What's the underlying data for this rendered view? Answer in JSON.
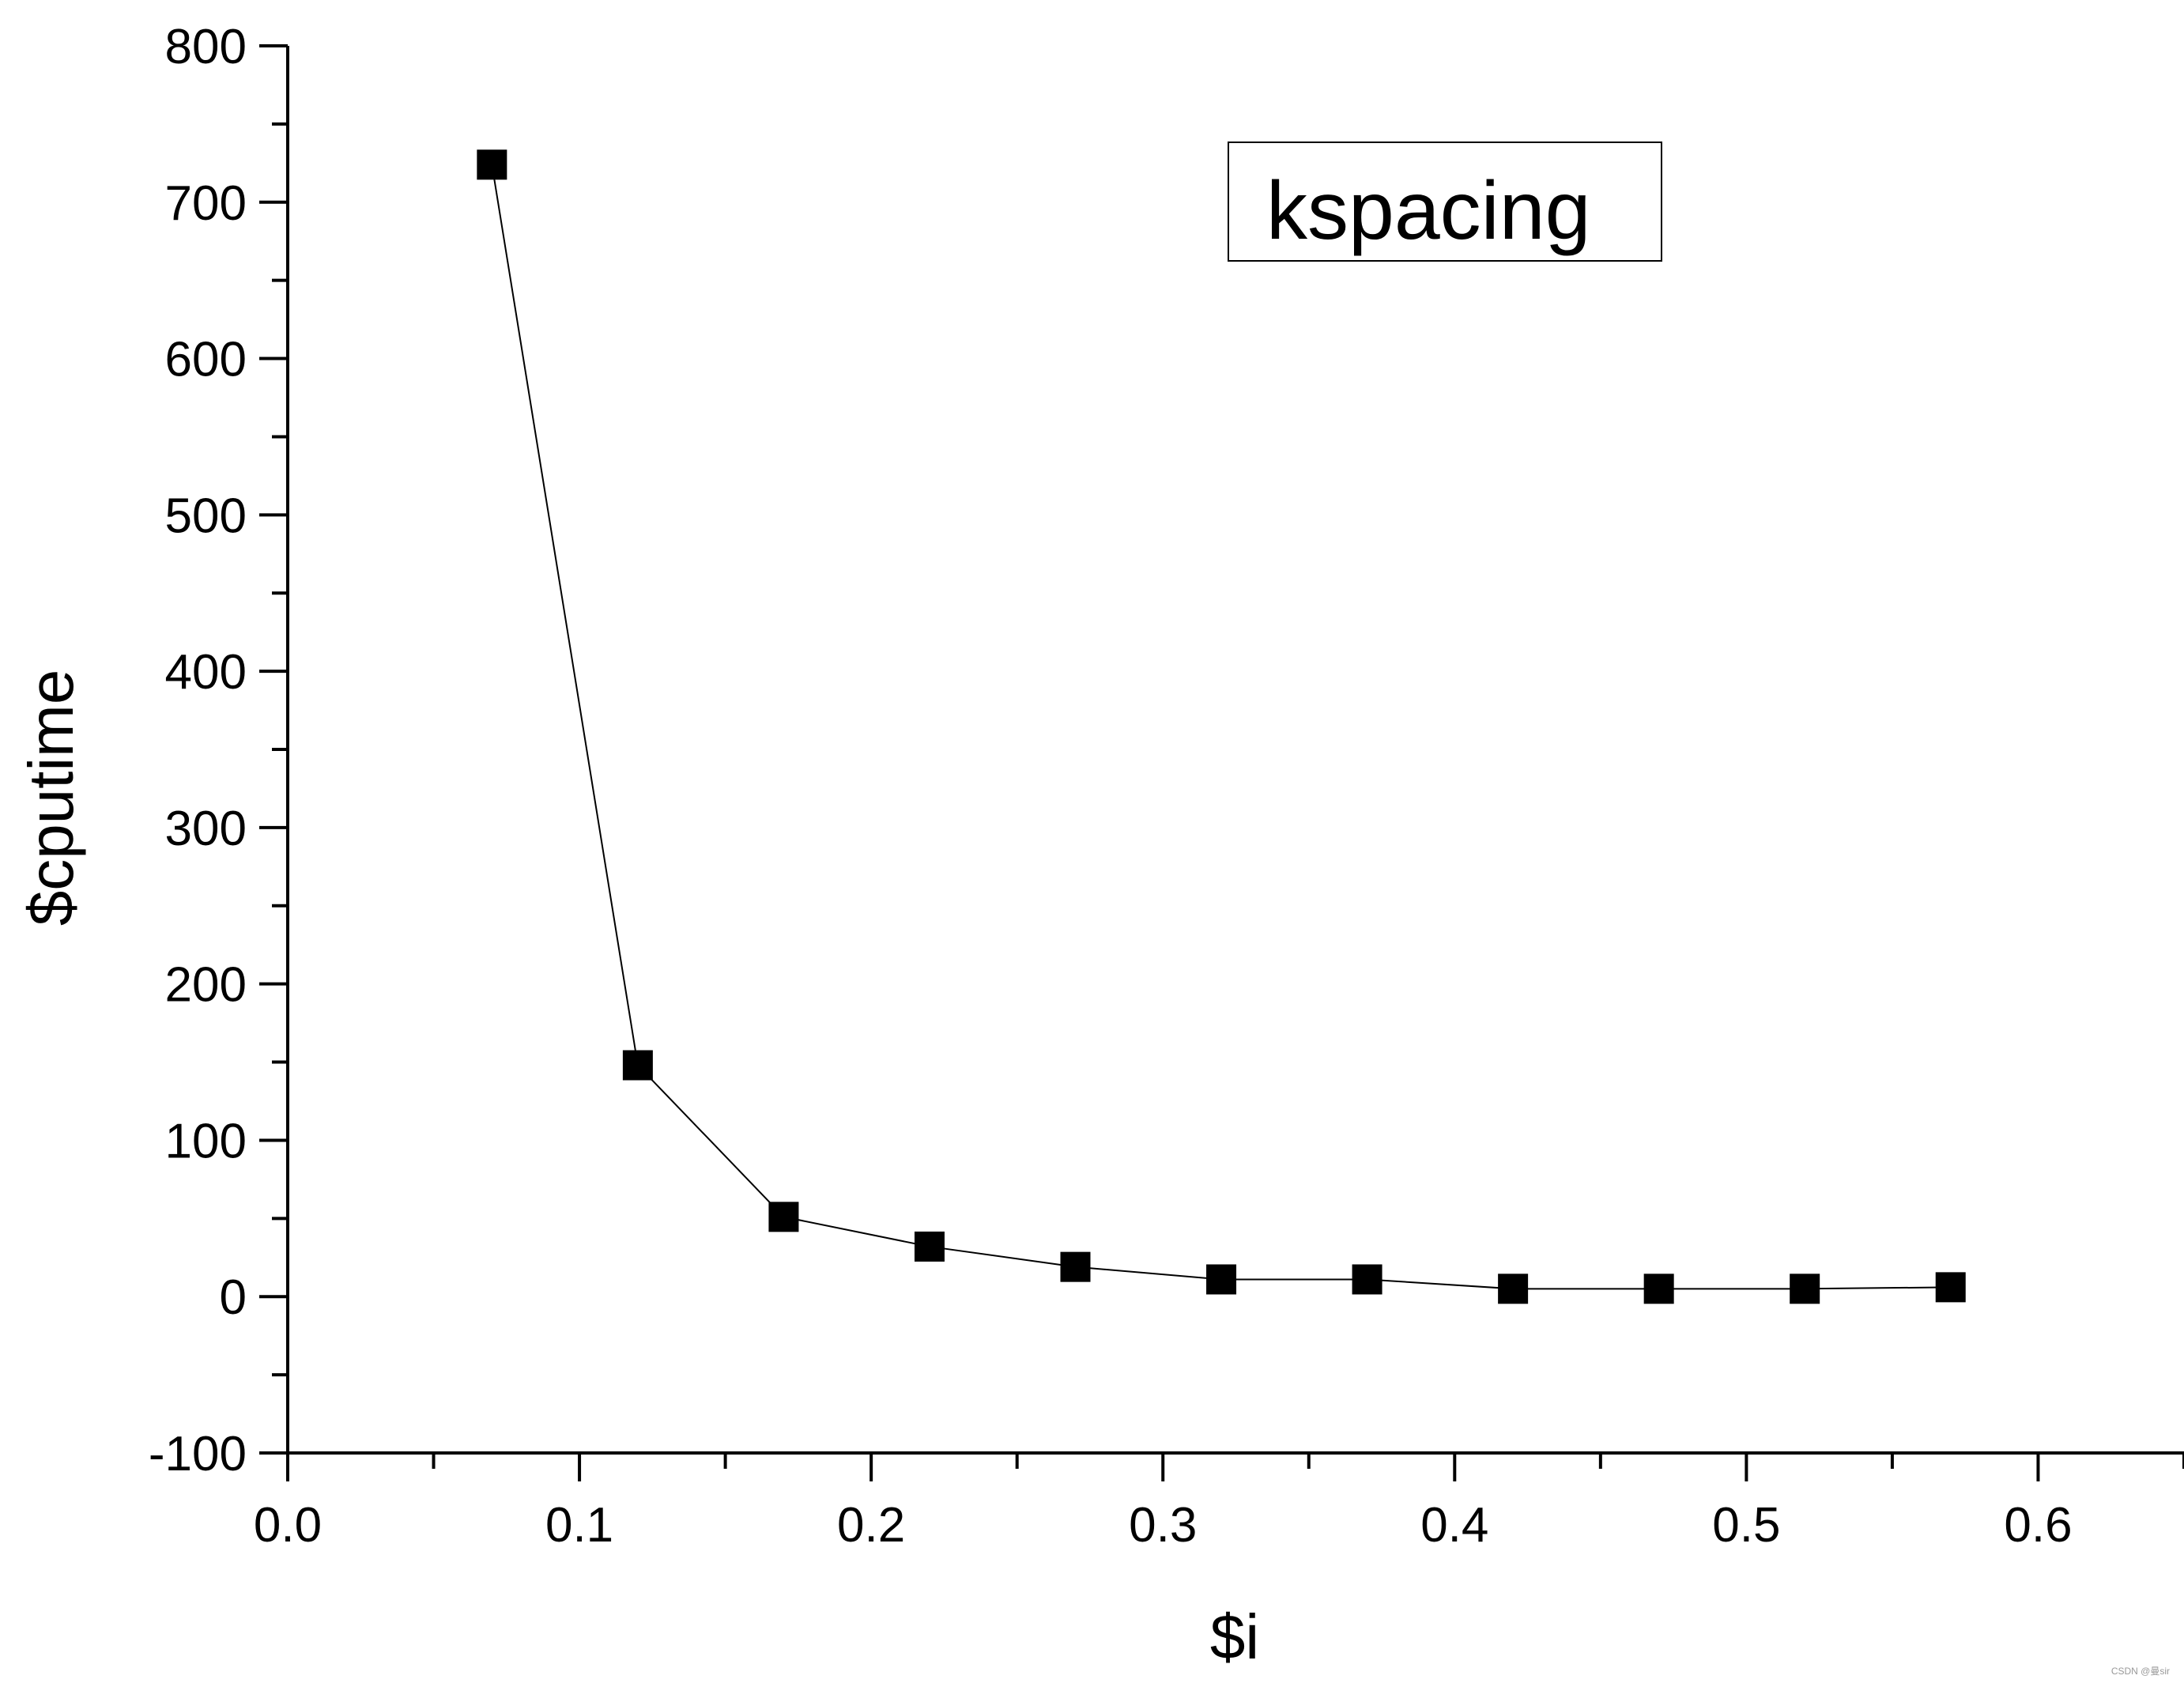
{
  "chart_data": {
    "type": "line",
    "xlabel": "$i",
    "ylabel": "$cputime",
    "xlim": [
      0.0,
      0.65
    ],
    "ylim": [
      -100,
      800
    ],
    "x_ticks": [
      "0.0",
      "0.1",
      "0.2",
      "0.3",
      "0.4",
      "0.5",
      "0.6"
    ],
    "y_ticks": [
      "-100",
      "0",
      "100",
      "200",
      "300",
      "400",
      "500",
      "600",
      "700",
      "800"
    ],
    "grid": false,
    "legend_position": "top-right",
    "series": [
      {
        "name": "kspacing",
        "marker": "square",
        "color": "#000000",
        "x": [
          0.07,
          0.12,
          0.17,
          0.22,
          0.27,
          0.32,
          0.37,
          0.42,
          0.47,
          0.52,
          0.57
        ],
        "y": [
          724,
          148,
          51,
          32,
          19,
          11,
          11,
          5,
          5,
          5,
          6
        ]
      }
    ]
  },
  "watermark": "CSDN @曼sir"
}
